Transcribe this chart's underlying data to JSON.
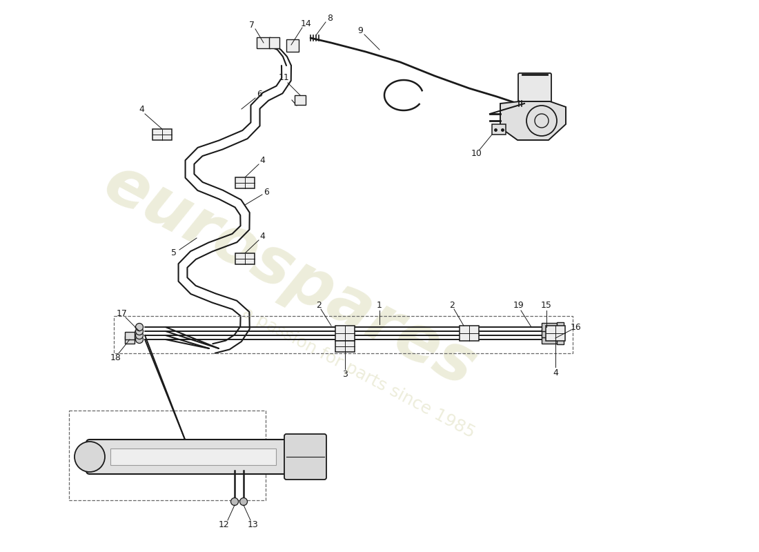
{
  "background_color": "#ffffff",
  "line_color": "#1a1a1a",
  "line_width": 1.6,
  "label_fontsize": 9,
  "watermark_color": "#cccc99",
  "watermark_alpha": 0.35,
  "fig_width": 11.0,
  "fig_height": 8.0,
  "dpi": 100,
  "xlim": [
    0,
    11
  ],
  "ylim": [
    0,
    8
  ]
}
